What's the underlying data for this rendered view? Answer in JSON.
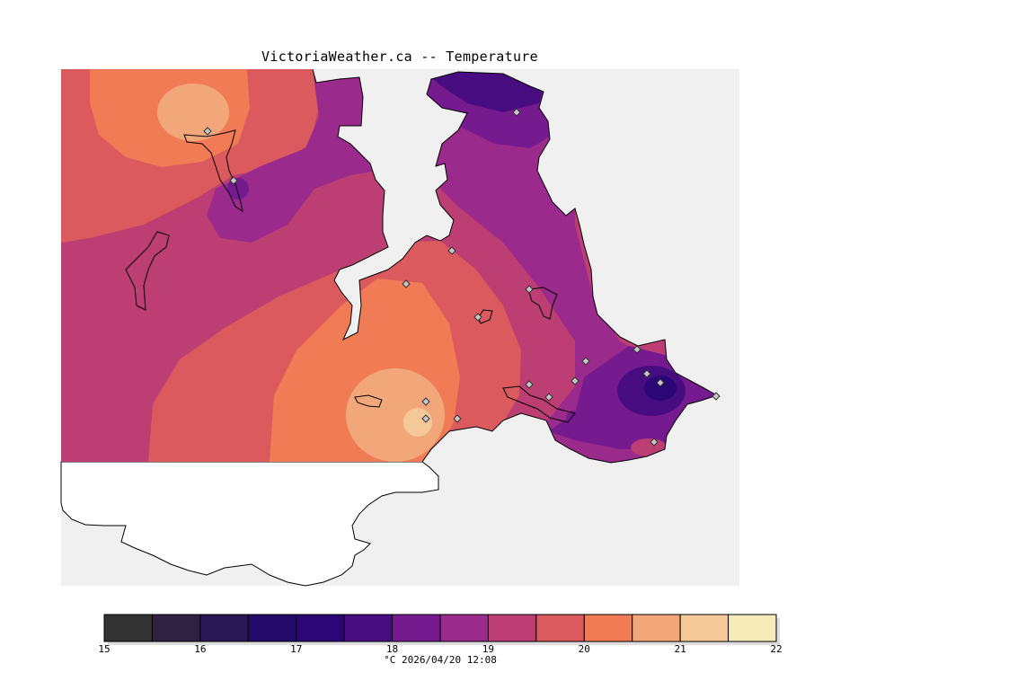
{
  "title": "VictoriaWeather.ca -- Temperature",
  "colorbar": {
    "tick_labels": [
      "15",
      "16",
      "17",
      "18",
      "19",
      "20",
      "21",
      "22"
    ],
    "min": 15,
    "max": 22,
    "step": 0.5,
    "colors": [
      "#333333",
      "#2e2142",
      "#2a1756",
      "#22096a",
      "#2a0775",
      "#470d80",
      "#761b8f",
      "#9a2a8b",
      "#bc3e73",
      "#da5a5e",
      "#f07b55",
      "#f2a77b",
      "#f5c897",
      "#f5ecba"
    ]
  },
  "caption": "°C  2026/04/20 12:08",
  "colors": {
    "ocean": "#f0f0f0",
    "land_outside": "#ffffff"
  }
}
